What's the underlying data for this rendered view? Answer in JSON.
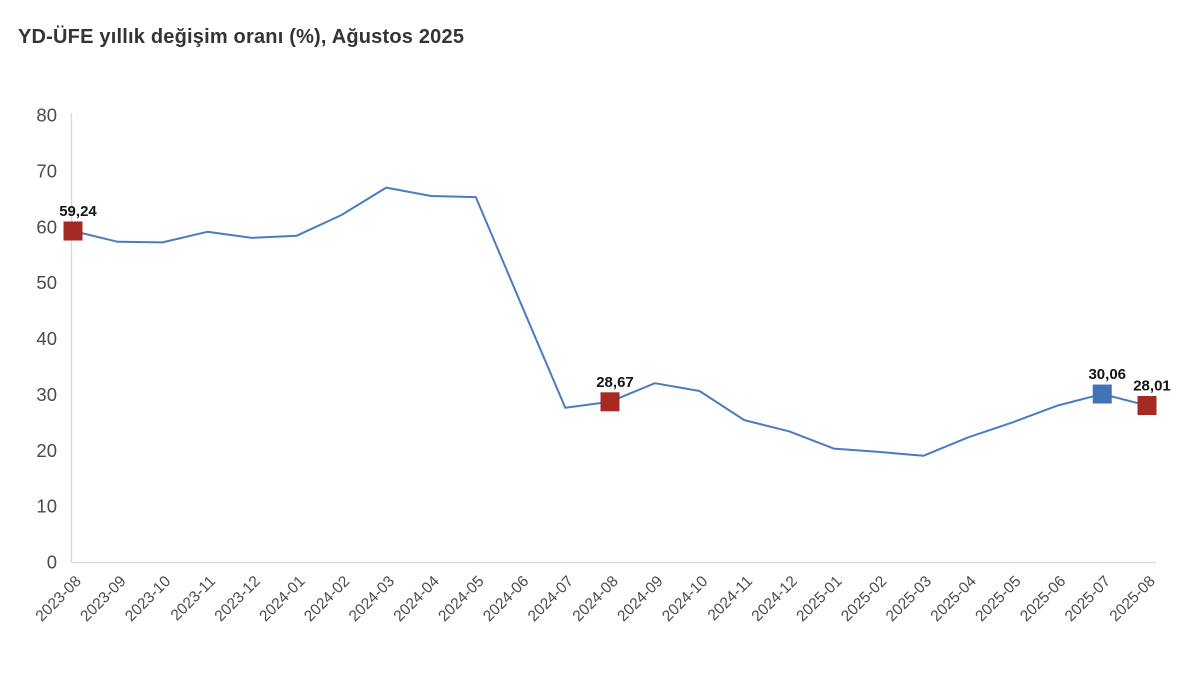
{
  "chart_data": {
    "type": "line",
    "title": "YD-ÜFE yıllık değişim oranı (%), Ağustos 2025",
    "x": [
      "2023-08",
      "2023-09",
      "2023-10",
      "2023-11",
      "2023-12",
      "2024-01",
      "2024-02",
      "2024-03",
      "2024-04",
      "2024-05",
      "2024-06",
      "2024-07",
      "2024-08",
      "2024-09",
      "2024-10",
      "2024-11",
      "2024-12",
      "2025-01",
      "2025-02",
      "2025-03",
      "2025-04",
      "2025-05",
      "2025-06",
      "2025-07",
      "2025-08"
    ],
    "values": [
      59.24,
      57.3,
      57.2,
      59.1,
      58.0,
      58.4,
      62.1,
      67.0,
      65.5,
      65.3,
      46.4,
      27.6,
      28.67,
      32.0,
      30.6,
      25.4,
      23.4,
      20.3,
      19.7,
      19.0,
      22.3,
      25.0,
      28.0,
      30.06,
      28.01
    ],
    "ylim": [
      0,
      80
    ],
    "yticks": [
      "0",
      "10",
      "20",
      "30",
      "40",
      "50",
      "60",
      "70",
      "80"
    ],
    "grid": false,
    "legend": "none",
    "line_color": "#4a7cbf",
    "axis_color": "#d8d8d8",
    "tick_label_color": "#4b4b4b",
    "point_label_color": "#141414",
    "marked_points": [
      {
        "x": "2023-08",
        "value_label": "59,24",
        "color": "#a52a23"
      },
      {
        "x": "2024-08",
        "value_label": "28,67",
        "color": "#a52a23"
      },
      {
        "x": "2025-07",
        "value_label": "30,06",
        "color": "#4273b8"
      },
      {
        "x": "2025-08",
        "value_label": "28,01",
        "color": "#a52a23"
      }
    ]
  }
}
